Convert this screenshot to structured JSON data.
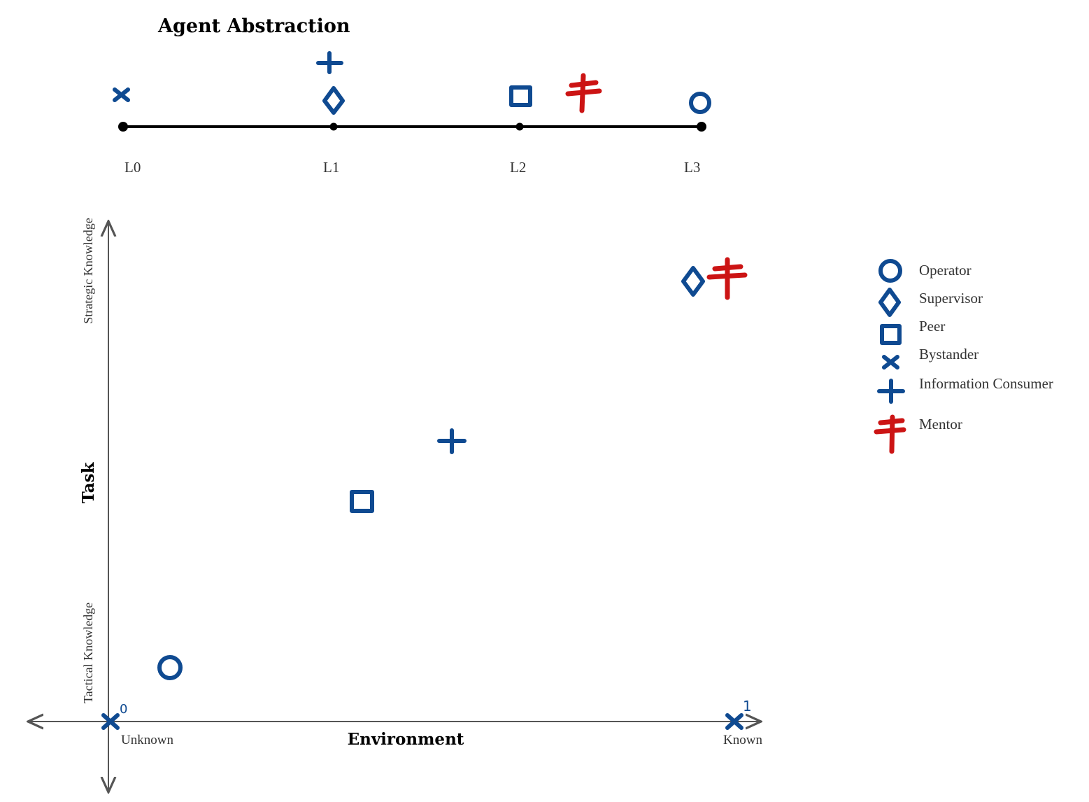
{
  "abstraction": {
    "title": "Agent Abstraction",
    "levels": [
      "L0",
      "L1",
      "L2",
      "L3"
    ]
  },
  "axes": {
    "x_label": "Environment",
    "y_label": "Task",
    "x_left_tick": "Unknown",
    "x_right_tick": "Known",
    "y_bottom_tick": "Tactical Knowledge",
    "y_top_tick": "Strategic Knowledge",
    "origin_number": "0",
    "end_number": "1"
  },
  "legend": [
    {
      "label": "Operator",
      "icon": "circle-icon"
    },
    {
      "label": "Supervisor",
      "icon": "diamond-icon"
    },
    {
      "label": "Peer",
      "icon": "square-icon"
    },
    {
      "label": "Bystander",
      "icon": "x-icon"
    },
    {
      "label": "Information Consumer",
      "icon": "plus-icon"
    },
    {
      "label": "Mentor",
      "icon": "double-cross-icon"
    }
  ],
  "colors": {
    "agent_blue": "#0f4a91",
    "mentor_red": "#cc1414"
  }
}
